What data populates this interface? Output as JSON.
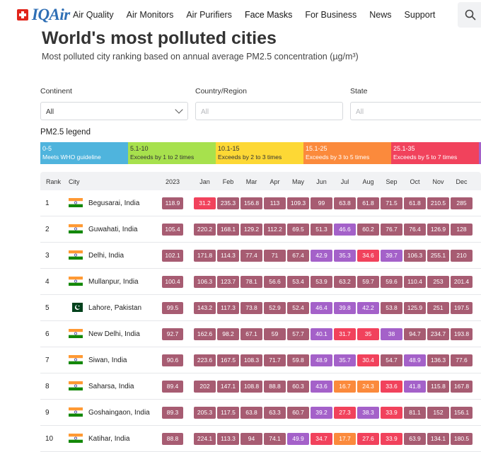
{
  "header": {
    "logo_text": "IQAir",
    "nav": [
      "Air Quality",
      "Air Monitors",
      "Air Purifiers",
      "Face Masks",
      "For Business",
      "News",
      "Support"
    ]
  },
  "page": {
    "title": "World's most polluted cities",
    "subtitle": "Most polluted city ranking based on annual average PM2.5 concentration (µg/m³)"
  },
  "filters": {
    "continent": {
      "label": "Continent",
      "value": "All"
    },
    "country": {
      "label": "Country/Region",
      "placeholder": "All"
    },
    "state": {
      "label": "State",
      "placeholder": "All"
    }
  },
  "legend": {
    "title": "PM2.5 legend",
    "items": [
      {
        "range": "0-5",
        "desc": "Meets WHO guideline",
        "color": "#4fb4dd"
      },
      {
        "range": "5.1-10",
        "desc": "Exceeds by 1 to 2 times",
        "color": "#a7e14d"
      },
      {
        "range": "10.1-15",
        "desc": "Exceeds by 2 to 3 times",
        "color": "#fdd835"
      },
      {
        "range": "15.1-25",
        "desc": "Exceeds by 3 to 5 times",
        "color": "#fb8a3c"
      },
      {
        "range": "25.1-35",
        "desc": "Exceeds by 5 to 7 times",
        "color": "#f1425c"
      }
    ]
  },
  "colors": {
    "maroon": "#a75c72",
    "purple": "#a461c9",
    "red": "#f1425c",
    "orange": "#fb8a3c",
    "accent_stub": "#a461c9"
  },
  "table": {
    "headers": {
      "rank": "Rank",
      "city": "City",
      "year": "2023",
      "months": [
        "Jan",
        "Feb",
        "Mar",
        "Apr",
        "May",
        "Jun",
        "Jul",
        "Aug",
        "Sep",
        "Oct",
        "Nov",
        "Dec"
      ]
    },
    "rows": [
      {
        "rank": "1",
        "flag": "india-flag-icon",
        "city": "Begusarai, India",
        "year": "118.9",
        "months": [
          "31.2",
          "235.3",
          "156.8",
          "113",
          "109.3",
          "99",
          "63.8",
          "61.8",
          "71.5",
          "61.8",
          "210.5",
          "285"
        ],
        "cats": [
          "m",
          "r",
          "m",
          "m",
          "m",
          "m",
          "m",
          "m",
          "m",
          "m",
          "m",
          "m",
          "m"
        ]
      },
      {
        "rank": "2",
        "flag": "india-flag-icon",
        "city": "Guwahati, India",
        "year": "105.4",
        "months": [
          "220.2",
          "168.1",
          "129.2",
          "112.2",
          "69.5",
          "51.3",
          "46.6",
          "60.2",
          "76.7",
          "76.4",
          "126.9",
          "128"
        ],
        "cats": [
          "m",
          "m",
          "m",
          "m",
          "m",
          "m",
          "m",
          "p",
          "m",
          "m",
          "m",
          "m",
          "m"
        ]
      },
      {
        "rank": "3",
        "flag": "india-flag-icon",
        "city": "Delhi, India",
        "year": "102.1",
        "months": [
          "171.8",
          "114.3",
          "77.4",
          "71",
          "67.4",
          "42.9",
          "35.3",
          "34.6",
          "39.7",
          "106.3",
          "255.1",
          "210"
        ],
        "cats": [
          "m",
          "m",
          "m",
          "m",
          "m",
          "m",
          "p",
          "p",
          "r",
          "p",
          "m",
          "m",
          "m"
        ]
      },
      {
        "rank": "4",
        "flag": "india-flag-icon",
        "city": "Mullanpur, India",
        "year": "100.4",
        "months": [
          "106.3",
          "123.7",
          "78.1",
          "56.6",
          "53.4",
          "53.9",
          "63.2",
          "59.7",
          "59.6",
          "110.4",
          "253",
          "201.4"
        ],
        "cats": [
          "m",
          "m",
          "m",
          "m",
          "m",
          "m",
          "m",
          "m",
          "m",
          "m",
          "m",
          "m",
          "m"
        ]
      },
      {
        "rank": "5",
        "flag": "pakistan-flag-icon",
        "city": "Lahore, Pakistan",
        "year": "99.5",
        "months": [
          "143.2",
          "117.3",
          "73.8",
          "52.9",
          "52.4",
          "46.4",
          "39.8",
          "42.2",
          "53.8",
          "125.9",
          "251",
          "197.5"
        ],
        "cats": [
          "m",
          "m",
          "m",
          "m",
          "m",
          "m",
          "p",
          "p",
          "p",
          "m",
          "m",
          "m",
          "m"
        ]
      },
      {
        "rank": "6",
        "flag": "india-flag-icon",
        "city": "New Delhi, India",
        "year": "92.7",
        "months": [
          "162.6",
          "98.2",
          "67.1",
          "59",
          "57.7",
          "40.1",
          "31.7",
          "35",
          "38",
          "94.7",
          "234.7",
          "193.8"
        ],
        "cats": [
          "m",
          "m",
          "m",
          "m",
          "m",
          "m",
          "p",
          "r",
          "r",
          "p",
          "m",
          "m",
          "m"
        ]
      },
      {
        "rank": "7",
        "flag": "india-flag-icon",
        "city": "Siwan, India",
        "year": "90.6",
        "months": [
          "223.6",
          "167.5",
          "108.3",
          "71.7",
          "59.8",
          "48.9",
          "35.7",
          "30.4",
          "54.7",
          "48.9",
          "136.3",
          "77.6"
        ],
        "cats": [
          "m",
          "m",
          "m",
          "m",
          "m",
          "m",
          "p",
          "p",
          "r",
          "m",
          "p",
          "m",
          "m"
        ]
      },
      {
        "rank": "8",
        "flag": "india-flag-icon",
        "city": "Saharsa, India",
        "year": "89.4",
        "months": [
          "202",
          "147.1",
          "108.8",
          "88.8",
          "60.3",
          "43.6",
          "16.7",
          "24.3",
          "33.6",
          "41.8",
          "115.8",
          "167.8"
        ],
        "cats": [
          "m",
          "m",
          "m",
          "m",
          "m",
          "m",
          "p",
          "o",
          "o",
          "r",
          "p",
          "m",
          "m"
        ]
      },
      {
        "rank": "9",
        "flag": "india-flag-icon",
        "city": "Goshaingaon, India",
        "year": "89.3",
        "months": [
          "205.3",
          "117.5",
          "63.8",
          "63.3",
          "60.7",
          "39.2",
          "27.3",
          "38.3",
          "33.9",
          "81.1",
          "152",
          "156.1"
        ],
        "cats": [
          "m",
          "m",
          "m",
          "m",
          "m",
          "m",
          "p",
          "r",
          "p",
          "r",
          "m",
          "m",
          "m"
        ]
      },
      {
        "rank": "10",
        "flag": "india-flag-icon",
        "city": "Katihar, India",
        "year": "88.8",
        "months": [
          "224.1",
          "113.3",
          "94",
          "74.1",
          "49.9",
          "34.7",
          "17.7",
          "27.6",
          "33.9",
          "63.9",
          "134.1",
          "180.5"
        ],
        "cats": [
          "m",
          "m",
          "m",
          "m",
          "m",
          "p",
          "r",
          "o",
          "r",
          "r",
          "m",
          "m",
          "m"
        ]
      }
    ]
  }
}
